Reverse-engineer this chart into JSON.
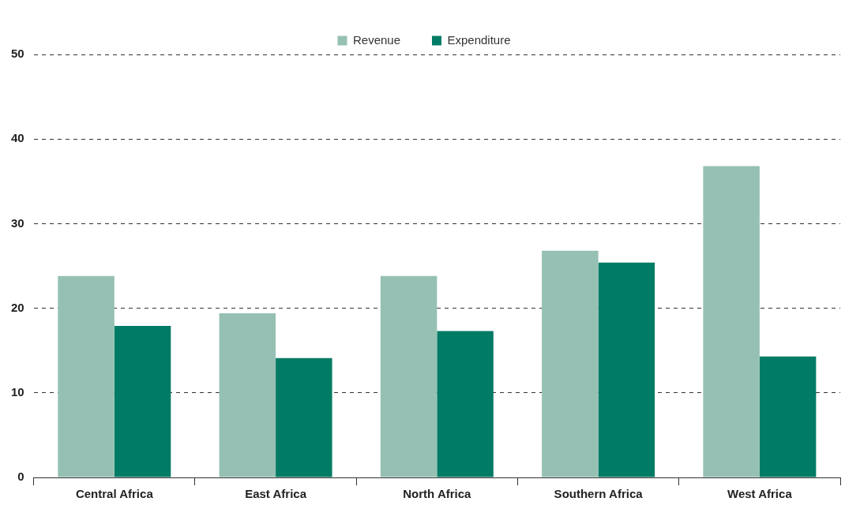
{
  "chart_data": {
    "type": "bar",
    "categories": [
      "Central Africa",
      "East Africa",
      "North Africa",
      "Southern Africa",
      "West Africa"
    ],
    "series": [
      {
        "name": "Revenue",
        "color": "#96c0b4",
        "values": [
          23.8,
          19.4,
          23.8,
          26.8,
          36.8
        ]
      },
      {
        "name": "Expenditure",
        "color": "#007b65",
        "values": [
          17.9,
          14.1,
          17.3,
          25.4,
          14.3
        ]
      }
    ],
    "ylim": [
      0,
      50
    ],
    "yticks": [
      0,
      10,
      20,
      30,
      40,
      50
    ],
    "grid": "y",
    "legend": "top"
  }
}
